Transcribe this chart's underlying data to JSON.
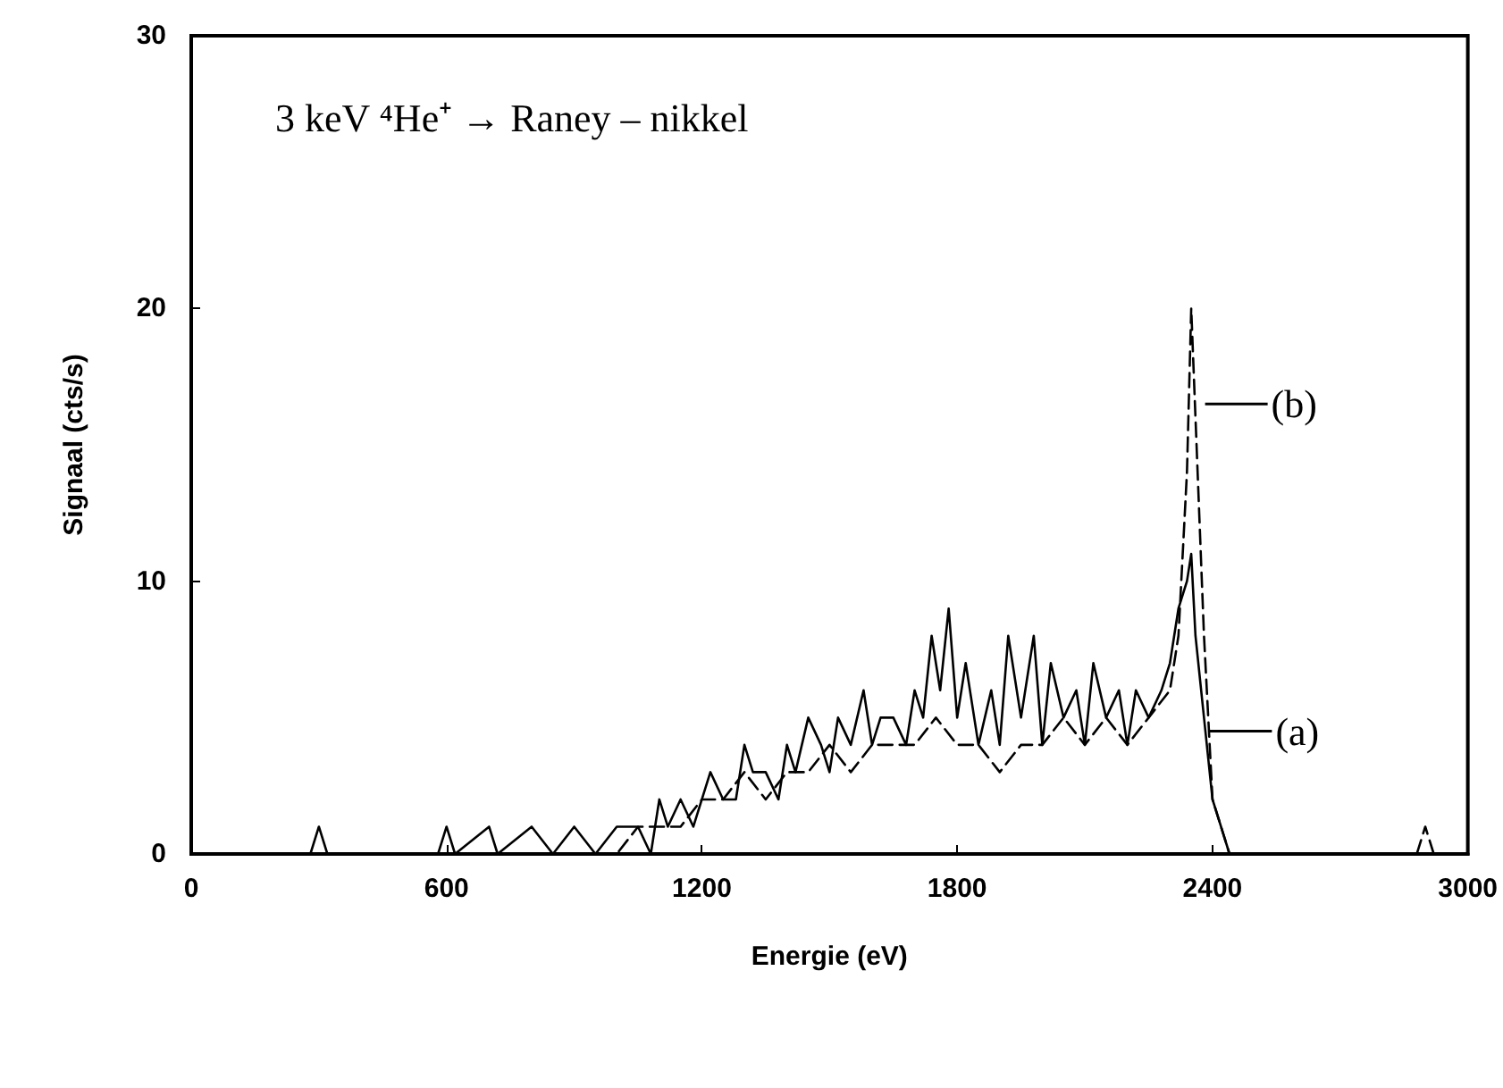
{
  "chart_data": {
    "type": "line",
    "title": "3 keV ⁴He⁺ → Raney – nikkel",
    "xlabel": "Energie (eV)",
    "ylabel": "Signaal (cts/s)",
    "xlim": [
      0,
      3000
    ],
    "xticks": [
      0,
      600,
      1200,
      1800,
      2400,
      3000
    ],
    "ylim": [
      0,
      30
    ],
    "yticks": [
      0,
      10,
      20,
      30
    ],
    "grid": false,
    "marker": "none",
    "series": [
      {
        "color": "#000000",
        "line_style": "solid",
        "x": [
          0,
          280,
          300,
          320,
          580,
          600,
          620,
          700,
          720,
          800,
          850,
          900,
          950,
          1000,
          1050,
          1080,
          1100,
          1120,
          1150,
          1180,
          1200,
          1220,
          1250,
          1280,
          1300,
          1320,
          1350,
          1380,
          1400,
          1420,
          1450,
          1480,
          1500,
          1520,
          1550,
          1580,
          1600,
          1620,
          1650,
          1680,
          1700,
          1720,
          1740,
          1760,
          1780,
          1800,
          1820,
          1850,
          1880,
          1900,
          1920,
          1950,
          1980,
          2000,
          2020,
          2050,
          2080,
          2100,
          2120,
          2150,
          2180,
          2200,
          2220,
          2250,
          2280,
          2300,
          2320,
          2340,
          2350,
          2360,
          2380,
          2400,
          2420,
          2440,
          2500,
          3000
        ],
        "values": [
          0,
          0,
          1,
          0,
          0,
          1,
          0,
          1,
          0,
          1,
          0,
          1,
          0,
          1,
          1,
          0,
          2,
          1,
          2,
          1,
          2,
          3,
          2,
          2,
          4,
          3,
          3,
          2,
          4,
          3,
          5,
          4,
          3,
          5,
          4,
          6,
          4,
          5,
          5,
          4,
          6,
          5,
          8,
          6,
          9,
          5,
          7,
          4,
          6,
          4,
          8,
          5,
          8,
          4,
          7,
          5,
          6,
          4,
          7,
          5,
          6,
          4,
          6,
          5,
          6,
          7,
          9,
          10,
          11,
          8,
          5,
          2,
          1,
          0,
          0,
          0
        ]
      },
      {
        "color": "#000000",
        "line_style": "dashed",
        "x": [
          0,
          1000,
          1050,
          1100,
          1150,
          1200,
          1250,
          1300,
          1350,
          1400,
          1450,
          1500,
          1550,
          1600,
          1650,
          1700,
          1750,
          1800,
          1850,
          1900,
          1950,
          2000,
          2050,
          2100,
          2150,
          2200,
          2250,
          2300,
          2320,
          2340,
          2350,
          2360,
          2380,
          2400,
          2420,
          2440,
          2460,
          2880,
          2900,
          2920,
          3000
        ],
        "values": [
          0,
          0,
          1,
          1,
          1,
          2,
          2,
          3,
          2,
          3,
          3,
          4,
          3,
          4,
          4,
          4,
          5,
          4,
          4,
          3,
          4,
          4,
          5,
          4,
          5,
          4,
          5,
          6,
          8,
          14,
          20,
          16,
          8,
          2,
          1,
          0,
          0,
          0,
          1,
          0,
          0
        ]
      }
    ],
    "annotations": [
      {
        "text": "(a)",
        "x": 2380,
        "y": 4.5
      },
      {
        "text": "(b)",
        "x": 2370,
        "y": 16.5
      }
    ]
  }
}
